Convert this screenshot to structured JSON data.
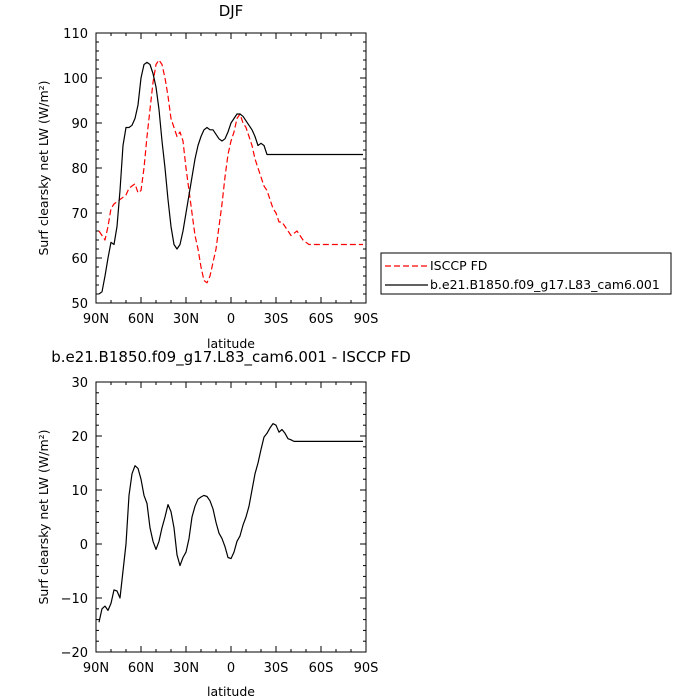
{
  "chart_data": [
    {
      "type": "line",
      "title": "DJF",
      "xlabel": "latitude",
      "ylabel": "Surf clearsky net LW (W/m²)",
      "xlim": [
        -90,
        90
      ],
      "ylim": [
        50,
        110
      ],
      "x_ticks": [
        "90N",
        "60N",
        "30N",
        "0",
        "30S",
        "60S",
        "90S"
      ],
      "y_ticks": [
        "50",
        "60",
        "70",
        "80",
        "90",
        "100",
        "110"
      ],
      "legend": {
        "placement": "right",
        "entries": [
          "ISCCP FD",
          "b.e21.B1850.f09_g17.L83_cam6.001"
        ]
      },
      "series": [
        {
          "name": "ISCCP FD",
          "color": "#ff0000",
          "dash": "dashed",
          "x": [
            -88,
            -86,
            -84,
            -82,
            -80,
            -78,
            -76,
            -74,
            -72,
            -70,
            -68,
            -66,
            -64,
            -62,
            -60,
            -58,
            -56,
            -54,
            -52,
            -50,
            -48,
            -46,
            -44,
            -42,
            -40,
            -38,
            -36,
            -34,
            -32,
            -30,
            -28,
            -26,
            -24,
            -22,
            -20,
            -18,
            -16,
            -14,
            -12,
            -10,
            -8,
            -6,
            -4,
            -2,
            0,
            2,
            4,
            6,
            8,
            10,
            12,
            14,
            16,
            18,
            20,
            22,
            24,
            26,
            28,
            30,
            32,
            34,
            36,
            38,
            40,
            42,
            44,
            46,
            48,
            50,
            52,
            54,
            56,
            58,
            60,
            62,
            64,
            66,
            68,
            70,
            72,
            74,
            76,
            78,
            80,
            82,
            84,
            86,
            88
          ],
          "y": [
            66,
            65,
            64,
            67,
            71,
            72,
            72.5,
            73,
            73.5,
            74,
            75.5,
            76,
            76.5,
            74.5,
            75,
            80,
            87,
            93,
            99,
            103,
            104,
            103,
            100,
            96,
            91,
            89,
            87,
            88,
            86,
            80,
            75,
            70,
            65,
            62,
            58,
            55,
            54.5,
            56,
            59,
            62,
            67,
            72,
            78,
            83,
            86,
            88,
            91,
            92,
            90,
            89,
            87,
            85,
            82,
            80,
            78,
            76,
            75,
            73,
            71,
            70,
            68,
            68,
            67,
            66,
            65,
            65.5,
            66,
            65,
            64,
            63.5,
            63,
            63,
            63,
            63,
            63,
            63,
            63,
            63,
            63,
            63,
            63,
            63,
            63,
            63,
            63,
            63,
            63,
            63,
            63
          ]
        },
        {
          "name": "b.e21.B1850.f09_g17.L83_cam6.001",
          "color": "#000000",
          "dash": "solid",
          "x": [
            -88,
            -86,
            -84,
            -82,
            -80,
            -78,
            -76,
            -74,
            -72,
            -70,
            -68,
            -66,
            -64,
            -62,
            -60,
            -58,
            -56,
            -54,
            -52,
            -50,
            -48,
            -46,
            -44,
            -42,
            -40,
            -38,
            -36,
            -34,
            -32,
            -30,
            -28,
            -26,
            -24,
            -22,
            -20,
            -18,
            -16,
            -14,
            -12,
            -10,
            -8,
            -6,
            -4,
            -2,
            0,
            2,
            4,
            6,
            8,
            10,
            12,
            14,
            16,
            18,
            20,
            22,
            24,
            26,
            28,
            30,
            32,
            34,
            36,
            38,
            40,
            42,
            44,
            46,
            48,
            50,
            52,
            54,
            56,
            58,
            60,
            62,
            64,
            66,
            68,
            70,
            72,
            74,
            76,
            78,
            80,
            82,
            84,
            86,
            88
          ],
          "y": [
            52,
            52.5,
            56,
            60,
            63.5,
            63,
            67,
            75,
            85,
            89,
            89,
            89.5,
            91,
            94,
            100,
            103,
            103.5,
            103,
            101,
            98,
            93,
            86,
            80,
            73,
            67,
            63,
            62,
            63,
            66,
            70,
            74,
            78,
            82,
            85,
            87,
            88.5,
            89,
            88.5,
            88.5,
            87.5,
            86.5,
            86,
            86.5,
            88,
            90,
            91,
            92,
            92,
            91.5,
            90.5,
            89.5,
            88.5,
            87,
            85,
            85.5,
            85,
            83,
            83,
            83,
            83,
            83,
            83,
            83,
            83,
            83,
            83,
            83,
            83,
            83,
            83,
            83,
            83,
            83,
            83,
            83,
            83,
            83,
            83,
            83,
            83,
            83,
            83,
            83,
            83,
            83,
            83,
            83,
            83,
            83
          ]
        }
      ]
    },
    {
      "type": "line",
      "title": "b.e21.B1850.f09_g17.L83_cam6.001 - ISCCP FD",
      "xlabel": "latitude",
      "ylabel": "Surf clearsky net LW (W/m²)",
      "xlim": [
        -90,
        90
      ],
      "ylim": [
        -20,
        30
      ],
      "x_ticks": [
        "90N",
        "60N",
        "30N",
        "0",
        "30S",
        "60S",
        "90S"
      ],
      "y_ticks": [
        "−20",
        "−10",
        "0",
        "10",
        "20",
        "30"
      ],
      "series": [
        {
          "color": "#000000",
          "dash": "solid",
          "x": [
            -88,
            -86,
            -84,
            -82,
            -80,
            -78,
            -76,
            -74,
            -72,
            -70,
            -68,
            -66,
            -64,
            -62,
            -60,
            -58,
            -56,
            -54,
            -52,
            -50,
            -48,
            -46,
            -44,
            -42,
            -40,
            -38,
            -36,
            -34,
            -32,
            -30,
            -28,
            -26,
            -24,
            -22,
            -20,
            -18,
            -16,
            -14,
            -12,
            -10,
            -8,
            -6,
            -4,
            -2,
            0,
            2,
            4,
            6,
            8,
            10,
            12,
            14,
            16,
            18,
            20,
            22,
            24,
            26,
            28,
            30,
            32,
            34,
            36,
            38,
            40,
            42,
            44,
            46,
            48,
            50,
            52,
            54,
            56,
            58,
            60,
            62,
            64,
            66,
            68,
            70,
            72,
            74,
            76,
            78,
            80,
            82,
            84,
            86,
            88
          ],
          "y": [
            -14.5,
            -12,
            -11.5,
            -12.3,
            -11,
            -8.5,
            -8.7,
            -10,
            -5,
            0,
            9,
            13,
            14.5,
            14,
            12,
            9,
            7.5,
            3,
            0.5,
            -1,
            0.5,
            3,
            5,
            7.3,
            6,
            3,
            -2,
            -4,
            -2.5,
            -1.5,
            1,
            5,
            7,
            8.3,
            8.7,
            9,
            8.8,
            8,
            6.5,
            4,
            2,
            1,
            -0.5,
            -2.5,
            -2.7,
            -1.5,
            0.5,
            1.5,
            3.5,
            5,
            7,
            10,
            13,
            15,
            17.5,
            19.8,
            20.5,
            21.5,
            22.3,
            22,
            20.7,
            21.2,
            20.5,
            19.5,
            19.3,
            19,
            19,
            19,
            19,
            19,
            19,
            19,
            19,
            19,
            19,
            19,
            19,
            19,
            19,
            19,
            19,
            19,
            19,
            19,
            19,
            19,
            19,
            19,
            19
          ]
        }
      ]
    }
  ]
}
